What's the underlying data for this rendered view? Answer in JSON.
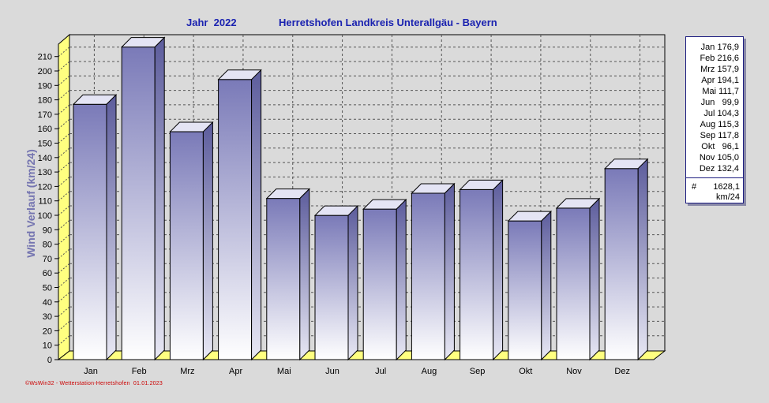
{
  "title": {
    "year_label": "Jahr  2022",
    "location": "Herretshofen Landkreis Unterallgäu - Bayern"
  },
  "footer": "©WsWin32 - Wetterstation-Herretshofen  01.01.2023",
  "colors": {
    "background": "#dadada",
    "bar_top": "#7a7ab8",
    "bar_bottom": "#ffffff",
    "floor": "#ffff80",
    "text_axis": "#7474b0"
  },
  "legend": {
    "entries": [
      "Jan 176,9",
      "Feb 216,6",
      "Mrz 157,9",
      "Apr 194,1",
      "Mai 111,7",
      "Jun   99,9",
      "Jul 104,3",
      "Aug 115,3",
      "Sep 117,8",
      "Okt   96,1",
      "Nov 105,0",
      "Dez 132,4"
    ],
    "hash": "#",
    "total": "1628,1",
    "unit": "km/24"
  },
  "chart_data": {
    "type": "bar",
    "categories": [
      "Jan",
      "Feb",
      "Mrz",
      "Apr",
      "Mai",
      "Jun",
      "Jul",
      "Aug",
      "Sep",
      "Okt",
      "Nov",
      "Dez"
    ],
    "values": [
      176.9,
      216.6,
      157.9,
      194.1,
      111.7,
      99.9,
      104.3,
      115.3,
      117.8,
      96.1,
      105.0,
      132.4
    ],
    "title": "Herretshofen Landkreis Unterallgäu - Bayern",
    "xlabel": "",
    "ylabel": "Wind Verlauf  (km/24)",
    "ylim": [
      0,
      220
    ],
    "yticks": [
      0,
      10,
      20,
      30,
      40,
      50,
      60,
      70,
      80,
      90,
      100,
      110,
      120,
      130,
      140,
      150,
      160,
      170,
      180,
      190,
      200,
      210
    ],
    "grid": true,
    "legend_position": "right"
  }
}
